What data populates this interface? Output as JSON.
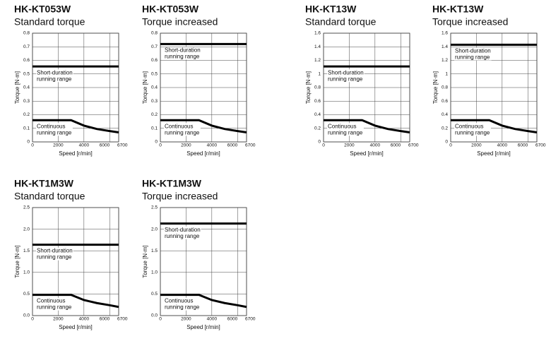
{
  "chart_data": [
    {
      "type": "line",
      "title": "HK-KT053W",
      "subtitle": "Standard torque",
      "xlabel": "Speed [r/min]",
      "ylabel": "Torque [N·m]",
      "xlim": [
        0,
        6700
      ],
      "xticks": [
        0,
        2000,
        4000,
        6000,
        6700
      ],
      "ylim": [
        0,
        0.8
      ],
      "yticks": [
        0,
        0.1,
        0.2,
        0.3,
        0.4,
        0.5,
        0.6,
        0.7,
        0.8
      ],
      "grid": true,
      "series": [
        {
          "color": "#000000",
          "x": [
            0,
            6700
          ],
          "values": [
            0.555,
            0.555
          ]
        },
        {
          "color": "#000000",
          "x": [
            0,
            3000,
            4000,
            5000,
            6000,
            6700
          ],
          "values": [
            0.16,
            0.16,
            0.12,
            0.095,
            0.08,
            0.07
          ]
        }
      ],
      "annotations": [
        {
          "lines": [
            "Short-duration",
            "running range"
          ]
        },
        {
          "lines": [
            "Continuous",
            "running range"
          ]
        }
      ]
    },
    {
      "type": "line",
      "title": "HK-KT053W",
      "subtitle": "Torque increased",
      "xlabel": "Speed [r/min]",
      "ylabel": "Torque [N·m]",
      "xlim": [
        0,
        6700
      ],
      "xticks": [
        0,
        2000,
        4000,
        6000,
        6700
      ],
      "ylim": [
        0,
        0.8
      ],
      "yticks": [
        0,
        0.1,
        0.2,
        0.3,
        0.4,
        0.5,
        0.6,
        0.7,
        0.8
      ],
      "grid": true,
      "series": [
        {
          "color": "#000000",
          "x": [
            0,
            6700
          ],
          "values": [
            0.72,
            0.72
          ]
        },
        {
          "color": "#000000",
          "x": [
            0,
            3000,
            4000,
            5000,
            6000,
            6700
          ],
          "values": [
            0.16,
            0.16,
            0.12,
            0.095,
            0.08,
            0.07
          ]
        }
      ],
      "annotations": [
        {
          "lines": [
            "Short-duration",
            "running range"
          ]
        },
        {
          "lines": [
            "Continuous",
            "running range"
          ]
        }
      ]
    },
    {
      "type": "line",
      "title": "HK-KT13W",
      "subtitle": "Standard torque",
      "xlabel": "Speed [r/min]",
      "ylabel": "Torque [N·m]",
      "xlim": [
        0,
        6700
      ],
      "xticks": [
        0,
        2000,
        4000,
        6000,
        6700
      ],
      "ylim": [
        0,
        1.6
      ],
      "yticks": [
        0,
        0.2,
        0.4,
        0.6,
        0.8,
        1,
        1.2,
        1.4,
        1.6
      ],
      "grid": true,
      "series": [
        {
          "color": "#000000",
          "x": [
            0,
            6700
          ],
          "values": [
            1.11,
            1.11
          ]
        },
        {
          "color": "#000000",
          "x": [
            0,
            3000,
            4000,
            5000,
            6000,
            6700
          ],
          "values": [
            0.32,
            0.32,
            0.24,
            0.19,
            0.16,
            0.14
          ]
        }
      ],
      "annotations": [
        {
          "lines": [
            "Short-duration",
            "running range"
          ]
        },
        {
          "lines": [
            "Continuous",
            "running range"
          ]
        }
      ]
    },
    {
      "type": "line",
      "title": "HK-KT13W",
      "subtitle": "Torque increased",
      "xlabel": "Speed [r/min]",
      "ylabel": "Torque [N·m]",
      "xlim": [
        0,
        6700
      ],
      "xticks": [
        0,
        2000,
        4000,
        6000,
        6700
      ],
      "ylim": [
        0,
        1.6
      ],
      "yticks": [
        0,
        0.2,
        0.4,
        0.6,
        0.8,
        1,
        1.2,
        1.4,
        1.6
      ],
      "grid": true,
      "series": [
        {
          "color": "#000000",
          "x": [
            0,
            6700
          ],
          "values": [
            1.43,
            1.43
          ]
        },
        {
          "color": "#000000",
          "x": [
            0,
            3000,
            4000,
            5000,
            6000,
            6700
          ],
          "values": [
            0.32,
            0.32,
            0.24,
            0.19,
            0.16,
            0.14
          ]
        }
      ],
      "annotations": [
        {
          "lines": [
            "Short-duration",
            "running range"
          ]
        },
        {
          "lines": [
            "Continuous",
            "running range"
          ]
        }
      ]
    },
    {
      "type": "line",
      "title": "HK-KT1M3W",
      "subtitle": "Standard torque",
      "xlabel": "Speed [r/min]",
      "ylabel": "Torque [N·m]",
      "xlim": [
        0,
        6700
      ],
      "xticks": [
        0,
        2000,
        4000,
        6000,
        6700
      ],
      "ylim": [
        0,
        2.5
      ],
      "yticks": [
        {
          "value": 0,
          "label": "0.0"
        },
        0.5,
        {
          "value": 1,
          "label": "1.0"
        },
        1.5,
        {
          "value": 2,
          "label": "2.0"
        },
        2.5
      ],
      "grid": true,
      "series": [
        {
          "color": "#000000",
          "x": [
            0,
            6700
          ],
          "values": [
            1.64,
            1.64
          ]
        },
        {
          "color": "#000000",
          "x": [
            0,
            3000,
            4000,
            5000,
            6000,
            6700
          ],
          "values": [
            0.48,
            0.48,
            0.36,
            0.29,
            0.24,
            0.2
          ]
        }
      ],
      "annotations": [
        {
          "lines": [
            "Short-duration",
            "running range"
          ]
        },
        {
          "lines": [
            "Continuous",
            "running range"
          ]
        }
      ]
    },
    {
      "type": "line",
      "title": "HK-KT1M3W",
      "subtitle": "Torque increased",
      "xlabel": "Speed [r/min]",
      "ylabel": "Torque [N·m]",
      "xlim": [
        0,
        6700
      ],
      "xticks": [
        0,
        2000,
        4000,
        6000,
        6700
      ],
      "ylim": [
        0,
        2.5
      ],
      "yticks": [
        {
          "value": 0,
          "label": "0.0"
        },
        0.5,
        {
          "value": 1,
          "label": "1.0"
        },
        1.5,
        {
          "value": 2,
          "label": "2.0"
        },
        2.5
      ],
      "grid": true,
      "series": [
        {
          "color": "#000000",
          "x": [
            0,
            6700
          ],
          "values": [
            2.13,
            2.13
          ]
        },
        {
          "color": "#000000",
          "x": [
            0,
            3000,
            4000,
            5000,
            6000,
            6700
          ],
          "values": [
            0.48,
            0.48,
            0.36,
            0.29,
            0.24,
            0.2
          ]
        }
      ],
      "annotations": [
        {
          "lines": [
            "Short-duration",
            "running range"
          ]
        },
        {
          "lines": [
            "Continuous",
            "running range"
          ]
        }
      ]
    }
  ]
}
